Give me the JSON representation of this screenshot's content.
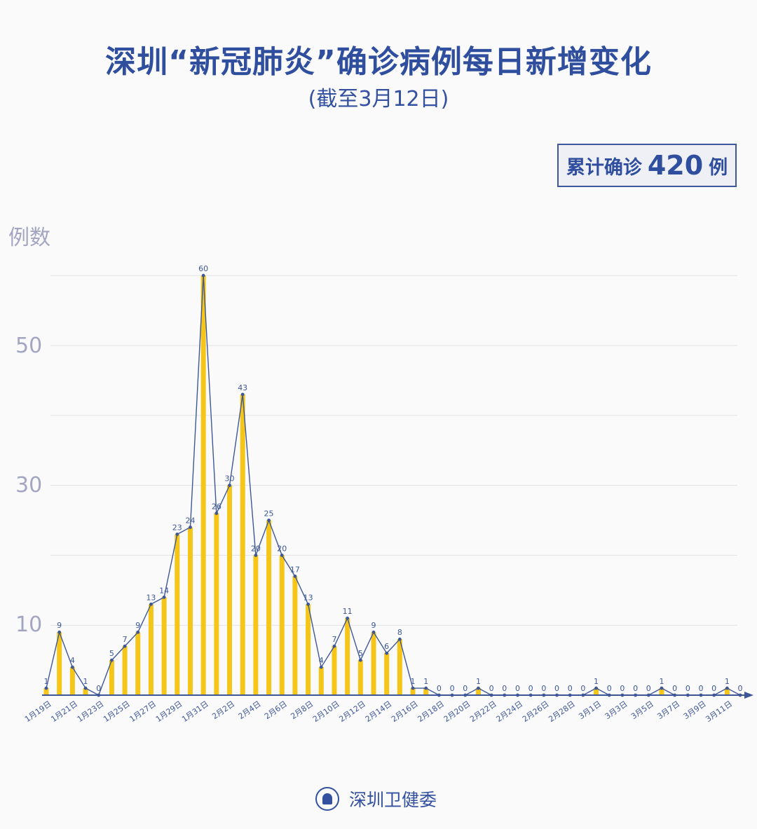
{
  "header": {
    "title": "深圳“新冠肺炎”确诊病例每日新增变化",
    "subtitle": "(截至3月12日)"
  },
  "summary": {
    "label": "累计确诊",
    "total": "420",
    "unit": "例"
  },
  "footer": {
    "org": "深圳卫健委",
    "logo_icon": "health-commission-emblem-icon"
  },
  "colors": {
    "bar": "#f5c518",
    "line": "#3e5797",
    "title": "#2f4f9e",
    "axis_text": "#a2a6c2",
    "grid": "#e2e2e6"
  },
  "chart_data": {
    "type": "bar",
    "title": "深圳“新冠肺炎”确诊病例每日新增变化",
    "subtitle": "(截至3月12日)",
    "xlabel": "",
    "ylabel": "例数",
    "ylim": [
      0,
      60
    ],
    "yticks": [
      10,
      30,
      50
    ],
    "grid": true,
    "overlay": "line with markers over bars",
    "categories": [
      "1月19日",
      "1月20日",
      "1月21日",
      "1月22日",
      "1月23日",
      "1月24日",
      "1月25日",
      "1月26日",
      "1月27日",
      "1月28日",
      "1月29日",
      "1月30日",
      "1月31日",
      "2月1日",
      "2月2日",
      "2月3日",
      "2月4日",
      "2月5日",
      "2月6日",
      "2月7日",
      "2月8日",
      "2月9日",
      "2月10日",
      "2月11日",
      "2月12日",
      "2月13日",
      "2月14日",
      "2月15日",
      "2月16日",
      "2月17日",
      "2月18日",
      "2月19日",
      "2月20日",
      "2月21日",
      "2月22日",
      "2月23日",
      "2月24日",
      "2月25日",
      "2月26日",
      "2月27日",
      "2月28日",
      "2月29日",
      "3月1日",
      "3月2日",
      "3月3日",
      "3月4日",
      "3月5日",
      "3月6日",
      "3月7日",
      "3月8日",
      "3月9日",
      "3月10日",
      "3月11日",
      "3月12日"
    ],
    "xtick_labels": [
      "1月19日",
      "1月21日",
      "1月23日",
      "1月25日",
      "1月27日",
      "1月29日",
      "1月31日",
      "2月2日",
      "2月4日",
      "2月6日",
      "2月8日",
      "2月10日",
      "2月12日",
      "2月14日",
      "2月16日",
      "2月18日",
      "2月20日",
      "2月22日",
      "2月24日",
      "2月26日",
      "2月28日",
      "3月1日",
      "3月3日",
      "3月5日",
      "3月7日",
      "3月9日",
      "3月11日"
    ],
    "series": [
      {
        "name": "每日新增确诊",
        "values": [
          1,
          9,
          4,
          1,
          0,
          5,
          7,
          9,
          13,
          14,
          23,
          24,
          60,
          26,
          30,
          43,
          20,
          25,
          20,
          17,
          13,
          4,
          7,
          11,
          5,
          9,
          6,
          8,
          1,
          1,
          0,
          0,
          0,
          1,
          0,
          0,
          0,
          0,
          0,
          0,
          0,
          0,
          1,
          0,
          0,
          0,
          0,
          1,
          0,
          0,
          0,
          0,
          1,
          0
        ]
      }
    ],
    "annotations": [
      "累计确诊 420 例"
    ]
  }
}
